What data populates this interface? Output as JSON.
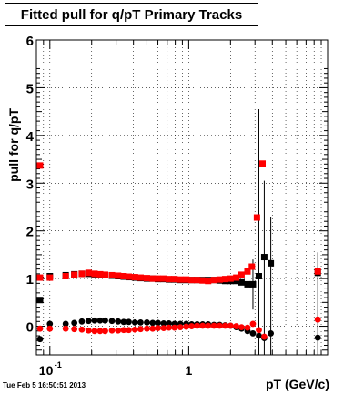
{
  "chart_data": {
    "type": "scatter",
    "title": "Fitted pull for q/pT  Primary Tracks",
    "xlabel": "pT (GeV/c)",
    "ylabel": "pull for q/pT",
    "xscale": "log",
    "xlim": [
      0.08,
      10
    ],
    "ylim": [
      -0.6,
      6
    ],
    "x_tick_labels": [
      {
        "value": 0.1,
        "base": "10",
        "exp": "-1"
      },
      {
        "value": 1,
        "base": "1",
        "exp": ""
      }
    ],
    "y_tick_labels": [
      "0",
      "1",
      "2",
      "3",
      "4",
      "5",
      "6"
    ],
    "grid": true,
    "colors": {
      "black_series": "#000000",
      "red_series": "#ff0000"
    },
    "series": [
      {
        "marker": "square",
        "color": "#000000",
        "points": [
          [
            0.085,
            0.55
          ],
          [
            0.1,
            1.05
          ],
          [
            0.13,
            1.07
          ],
          [
            0.15,
            1.09
          ],
          [
            0.17,
            1.1
          ],
          [
            0.19,
            1.1
          ],
          [
            0.21,
            1.09
          ],
          [
            0.23,
            1.08
          ],
          [
            0.25,
            1.07
          ],
          [
            0.28,
            1.06
          ],
          [
            0.31,
            1.05
          ],
          [
            0.34,
            1.04
          ],
          [
            0.37,
            1.03
          ],
          [
            0.41,
            1.02
          ],
          [
            0.45,
            1.01
          ],
          [
            0.5,
            1.0
          ],
          [
            0.55,
            1.0
          ],
          [
            0.6,
            0.99
          ],
          [
            0.66,
            0.99
          ],
          [
            0.72,
            0.98
          ],
          [
            0.79,
            0.98
          ],
          [
            0.87,
            0.97
          ],
          [
            0.96,
            0.97
          ],
          [
            1.05,
            0.97
          ],
          [
            1.15,
            0.97
          ],
          [
            1.26,
            0.97
          ],
          [
            1.38,
            0.97
          ],
          [
            1.52,
            0.97
          ],
          [
            1.67,
            0.96
          ],
          [
            1.83,
            0.95
          ],
          [
            2.0,
            0.95
          ],
          [
            2.2,
            0.95
          ],
          [
            2.4,
            0.92
          ],
          [
            2.65,
            0.88
          ],
          [
            2.9,
            0.88
          ],
          [
            3.2,
            1.05
          ],
          [
            3.5,
            1.45
          ],
          [
            3.9,
            1.32
          ],
          [
            8.5,
            1.12
          ]
        ]
      },
      {
        "marker": "square",
        "color": "#ff0000",
        "points": [
          [
            0.085,
            3.37
          ],
          [
            0.085,
            1.02
          ],
          [
            0.1,
            1.02
          ],
          [
            0.13,
            1.05
          ],
          [
            0.15,
            1.08
          ],
          [
            0.17,
            1.1
          ],
          [
            0.19,
            1.12
          ],
          [
            0.21,
            1.1
          ],
          [
            0.23,
            1.09
          ],
          [
            0.25,
            1.08
          ],
          [
            0.28,
            1.07
          ],
          [
            0.31,
            1.06
          ],
          [
            0.34,
            1.05
          ],
          [
            0.37,
            1.04
          ],
          [
            0.41,
            1.03
          ],
          [
            0.45,
            1.02
          ],
          [
            0.5,
            1.01
          ],
          [
            0.55,
            1.0
          ],
          [
            0.6,
            1.0
          ],
          [
            0.66,
            1.0
          ],
          [
            0.72,
            0.99
          ],
          [
            0.79,
            0.99
          ],
          [
            0.87,
            0.98
          ],
          [
            0.96,
            0.98
          ],
          [
            1.05,
            0.97
          ],
          [
            1.15,
            0.97
          ],
          [
            1.26,
            0.96
          ],
          [
            1.38,
            0.95
          ],
          [
            1.52,
            0.97
          ],
          [
            1.67,
            0.98
          ],
          [
            1.83,
            0.99
          ],
          [
            2.0,
            1.0
          ],
          [
            2.2,
            1.02
          ],
          [
            2.4,
            1.08
          ],
          [
            2.65,
            1.15
          ],
          [
            2.85,
            1.25
          ],
          [
            3.1,
            2.28
          ],
          [
            3.4,
            3.41
          ],
          [
            8.5,
            1.15
          ]
        ]
      },
      {
        "marker": "circle",
        "color": "#000000",
        "points": [
          [
            0.085,
            -0.27
          ],
          [
            0.1,
            0.05
          ],
          [
            0.13,
            0.05
          ],
          [
            0.15,
            0.07
          ],
          [
            0.17,
            0.1
          ],
          [
            0.19,
            0.11
          ],
          [
            0.21,
            0.12
          ],
          [
            0.23,
            0.12
          ],
          [
            0.25,
            0.12
          ],
          [
            0.28,
            0.11
          ],
          [
            0.31,
            0.1
          ],
          [
            0.34,
            0.09
          ],
          [
            0.37,
            0.09
          ],
          [
            0.41,
            0.08
          ],
          [
            0.45,
            0.08
          ],
          [
            0.5,
            0.08
          ],
          [
            0.55,
            0.07
          ],
          [
            0.6,
            0.07
          ],
          [
            0.66,
            0.06
          ],
          [
            0.72,
            0.06
          ],
          [
            0.79,
            0.05
          ],
          [
            0.87,
            0.05
          ],
          [
            0.96,
            0.05
          ],
          [
            1.05,
            0.04
          ],
          [
            1.15,
            0.04
          ],
          [
            1.26,
            0.04
          ],
          [
            1.38,
            0.04
          ],
          [
            1.52,
            0.03
          ],
          [
            1.67,
            0.03
          ],
          [
            1.83,
            0.02
          ],
          [
            2.0,
            0.01
          ],
          [
            2.2,
            -0.02
          ],
          [
            2.4,
            -0.05
          ],
          [
            2.65,
            -0.1
          ],
          [
            2.9,
            -0.15
          ],
          [
            3.2,
            -0.2
          ],
          [
            3.5,
            -0.25
          ],
          [
            3.9,
            -0.15
          ],
          [
            8.5,
            -0.24
          ]
        ]
      },
      {
        "marker": "circle",
        "color": "#ff0000",
        "points": [
          [
            0.085,
            -0.05
          ],
          [
            0.1,
            -0.05
          ],
          [
            0.13,
            -0.05
          ],
          [
            0.15,
            -0.06
          ],
          [
            0.17,
            -0.07
          ],
          [
            0.19,
            -0.09
          ],
          [
            0.21,
            -0.1
          ],
          [
            0.23,
            -0.1
          ],
          [
            0.25,
            -0.1
          ],
          [
            0.28,
            -0.09
          ],
          [
            0.31,
            -0.09
          ],
          [
            0.34,
            -0.08
          ],
          [
            0.37,
            -0.08
          ],
          [
            0.41,
            -0.07
          ],
          [
            0.45,
            -0.06
          ],
          [
            0.5,
            -0.05
          ],
          [
            0.55,
            -0.05
          ],
          [
            0.6,
            -0.04
          ],
          [
            0.66,
            -0.04
          ],
          [
            0.72,
            -0.03
          ],
          [
            0.79,
            -0.03
          ],
          [
            0.87,
            -0.02
          ],
          [
            0.96,
            -0.01
          ],
          [
            1.05,
            0.0
          ],
          [
            1.15,
            0.01
          ],
          [
            1.26,
            0.01
          ],
          [
            1.38,
            0.01
          ],
          [
            1.52,
            0.01
          ],
          [
            1.67,
            0.01
          ],
          [
            1.83,
            0.01
          ],
          [
            2.0,
            0.01
          ],
          [
            2.2,
            0.0
          ],
          [
            2.4,
            -0.02
          ],
          [
            2.65,
            -0.03
          ],
          [
            2.9,
            0.05
          ],
          [
            3.2,
            -0.08
          ],
          [
            3.5,
            -0.22
          ],
          [
            8.5,
            0.14
          ]
        ]
      }
    ],
    "error_bars": [
      {
        "x": 3.2,
        "lo": -0.6,
        "hi": 4.55
      },
      {
        "x": 3.5,
        "lo": -0.6,
        "hi": 3.05
      },
      {
        "x": 3.9,
        "lo": -0.6,
        "hi": 2.3
      },
      {
        "x": 2.9,
        "lo": 0.35,
        "hi": 1.4
      },
      {
        "x": 8.5,
        "lo": -0.6,
        "hi": 1.55
      }
    ]
  },
  "footer": {
    "timestamp": "Tue Feb  5 16:50:51 2013"
  }
}
